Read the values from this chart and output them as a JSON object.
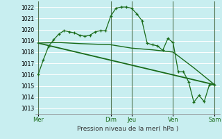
{
  "bg_color": "#c8eef0",
  "grid_color": "#aadddd",
  "line_color": "#1a6b1a",
  "xlabel": "Pression niveau de la mer( hPa )",
  "ylim": [
    1012.5,
    1022.5
  ],
  "yticks": [
    1013,
    1014,
    1015,
    1016,
    1017,
    1018,
    1019,
    1020,
    1021,
    1022
  ],
  "day_labels": [
    "Mer",
    "Dim",
    "Jeu",
    "Ven",
    "Sam"
  ],
  "day_positions": [
    0,
    14,
    18,
    26,
    34
  ],
  "xlim": [
    -0.5,
    35
  ],
  "line1_x": [
    0,
    1,
    2,
    3,
    4,
    5,
    6,
    7,
    8,
    9,
    10,
    11,
    12,
    13,
    14,
    15,
    16,
    17,
    18,
    19,
    20,
    21,
    22,
    23,
    24,
    25,
    26,
    27,
    28,
    29,
    30,
    31,
    32,
    33,
    34
  ],
  "line1_y": [
    1016.0,
    1017.3,
    1018.5,
    1019.1,
    1019.6,
    1019.9,
    1019.8,
    1019.7,
    1019.5,
    1019.4,
    1019.5,
    1019.8,
    1019.9,
    1019.9,
    1021.2,
    1021.9,
    1022.0,
    1022.0,
    1021.9,
    1021.4,
    1020.8,
    1018.8,
    1018.65,
    1018.55,
    1018.15,
    1019.2,
    1018.85,
    1016.25,
    1016.25,
    1015.35,
    1013.55,
    1014.15,
    1013.6,
    1015.1,
    1015.1
  ],
  "line2_x": [
    0,
    4,
    8,
    14,
    18,
    22,
    26,
    30,
    34
  ],
  "line2_y": [
    1018.8,
    1018.85,
    1018.75,
    1018.65,
    1018.35,
    1018.2,
    1018.0,
    1016.6,
    1015.1
  ],
  "line3_x": [
    0,
    34
  ],
  "line3_y": [
    1018.8,
    1015.1
  ]
}
